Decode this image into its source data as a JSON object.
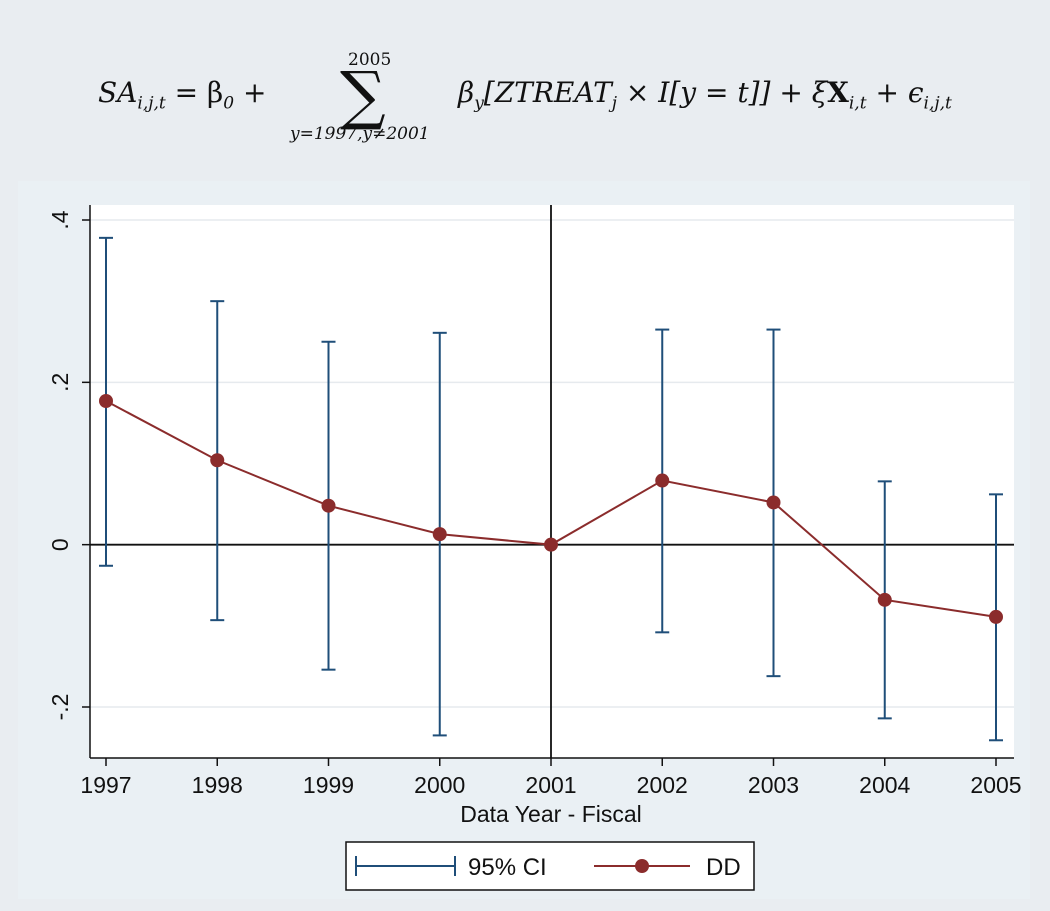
{
  "equation": {
    "lhs": "SA",
    "lhs_sub": "i,j,t",
    "rhs_start": "= β",
    "rhs_start_sub": "0",
    "plus": " +",
    "sum_upper": "2005",
    "sum_lower": "y=1997,y≠2001",
    "term_beta": "β",
    "term_beta_sub": "y",
    "term_bracket": "[ZTREAT",
    "term_bracket_sub": "j",
    "term_rest": " × I[y = t]] + ξ",
    "term_X": "X",
    "term_X_sub": "i,t",
    "term_eps": " + ϵ",
    "term_eps_sub": "i,j,t"
  },
  "chart_data": {
    "type": "line",
    "xlabel": "Data Year - Fiscal",
    "ylabel": "",
    "x": [
      1997,
      1998,
      1999,
      2000,
      2001,
      2002,
      2003,
      2004,
      2005
    ],
    "xlim": [
      1997,
      2005
    ],
    "ylim": [
      -0.26,
      0.41
    ],
    "yticks": [
      0.4,
      0.2,
      0,
      -0.2
    ],
    "ytick_labels": [
      ".4",
      ".2",
      "0",
      "-.2"
    ],
    "vline_x": 2001,
    "hline_y": 0,
    "grid": true,
    "legend_position": "bottom",
    "series": [
      {
        "name": "DD",
        "values": [
          0.177,
          0.104,
          0.048,
          0.013,
          0.0,
          0.079,
          0.052,
          -0.068,
          -0.089
        ],
        "color": "#8b2c2c"
      }
    ],
    "ci_95": {
      "name": "95% CI",
      "color": "#1f4e79",
      "lower": [
        -0.026,
        -0.093,
        -0.154,
        -0.235,
        0.0,
        -0.108,
        -0.162,
        -0.214,
        -0.241
      ],
      "upper": [
        0.378,
        0.3,
        0.25,
        0.261,
        0.0,
        0.265,
        0.265,
        0.078,
        0.062
      ]
    }
  }
}
